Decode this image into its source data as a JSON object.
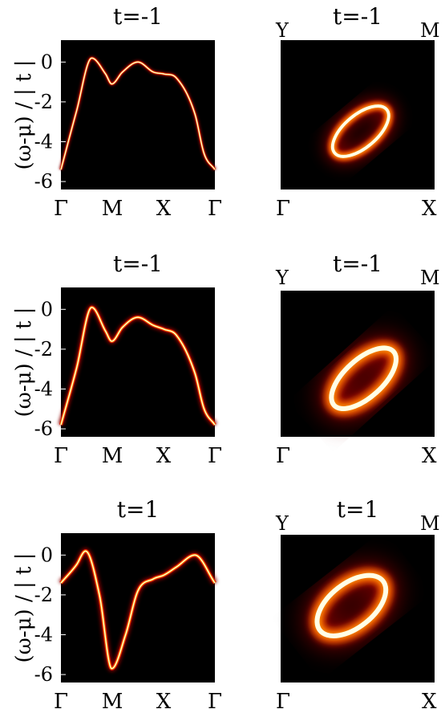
{
  "chart_data": [
    {
      "type": "line",
      "panel": "dispersion",
      "title": "t=-1",
      "ylabel": "(ω-μ) / | t |",
      "xticks": [
        "Γ",
        "M",
        "X",
        "Γ"
      ],
      "yticks": [
        0,
        -2,
        -4,
        -6
      ],
      "ylim": [
        -6.4,
        1.1
      ],
      "colormap": "hot",
      "width_scale": 0.5,
      "x": [
        0,
        0.1,
        0.2,
        0.29,
        0.33,
        0.4,
        0.5,
        0.6,
        0.67,
        0.75,
        0.87,
        0.93,
        1
      ],
      "y": [
        -5.4,
        -2.5,
        0.2,
        -0.6,
        -1.1,
        -0.5,
        0.0,
        -0.5,
        -0.6,
        -0.8,
        -2.6,
        -4.6,
        -5.4
      ]
    },
    {
      "type": "heatmap",
      "panel": "fermi-surface",
      "title": "t=-1",
      "corner_labels": {
        "top_left": "Y",
        "top_right": "M",
        "bottom_left": "Γ",
        "bottom_right": "X"
      },
      "colormap": "hot",
      "ring": {
        "cx": 0.52,
        "cy": 0.61,
        "rx": 0.22,
        "ry": 0.11,
        "angle_deg": -40,
        "width": 0.045,
        "blur": 0.01
      }
    },
    {
      "type": "line",
      "panel": "dispersion",
      "title": "t=-1",
      "ylabel": "(ω-μ) / | t |",
      "xticks": [
        "Γ",
        "M",
        "X",
        "Γ"
      ],
      "yticks": [
        0,
        -2,
        -4,
        -6
      ],
      "ylim": [
        -6.4,
        1.1
      ],
      "colormap": "hot",
      "width_scale": 0.75,
      "x": [
        0,
        0.1,
        0.2,
        0.29,
        0.33,
        0.4,
        0.5,
        0.6,
        0.67,
        0.75,
        0.87,
        0.93,
        1
      ],
      "y": [
        -5.8,
        -3.0,
        0.1,
        -1.1,
        -1.6,
        -0.9,
        -0.4,
        -0.8,
        -1.0,
        -1.3,
        -3.2,
        -5.0,
        -5.8
      ]
    },
    {
      "type": "heatmap",
      "panel": "fermi-surface",
      "title": "t=-1",
      "corner_labels": {
        "top_left": "Y",
        "top_right": "M",
        "bottom_left": "Γ",
        "bottom_right": "X"
      },
      "colormap": "hot",
      "ring": {
        "cx": 0.54,
        "cy": 0.6,
        "rx": 0.26,
        "ry": 0.13,
        "angle_deg": -42,
        "width": 0.07,
        "blur": 0.02
      }
    },
    {
      "type": "line",
      "panel": "dispersion",
      "title": "t=1",
      "ylabel": "(ω-μ) / | t |",
      "xticks": [
        "Γ",
        "M",
        "X",
        "Γ"
      ],
      "yticks": [
        0,
        -2,
        -4,
        -6
      ],
      "ylim": [
        -6.4,
        1.1
      ],
      "colormap": "hot",
      "width_scale": 0.8,
      "x": [
        0,
        0.1,
        0.16,
        0.25,
        0.33,
        0.42,
        0.5,
        0.6,
        0.67,
        0.75,
        0.87,
        1
      ],
      "y": [
        -1.4,
        -0.5,
        0.2,
        -2.0,
        -5.7,
        -4.0,
        -1.8,
        -1.2,
        -1.0,
        -0.6,
        0.0,
        -1.4
      ]
    },
    {
      "type": "heatmap",
      "panel": "fermi-surface",
      "title": "t=1",
      "corner_labels": {
        "top_left": "Y",
        "top_right": "M",
        "bottom_left": "Γ",
        "bottom_right": "X"
      },
      "colormap": "hot",
      "ring": {
        "cx": 0.46,
        "cy": 0.48,
        "rx": 0.26,
        "ry": 0.15,
        "angle_deg": -38,
        "width": 0.07,
        "blur": 0.02
      }
    }
  ]
}
